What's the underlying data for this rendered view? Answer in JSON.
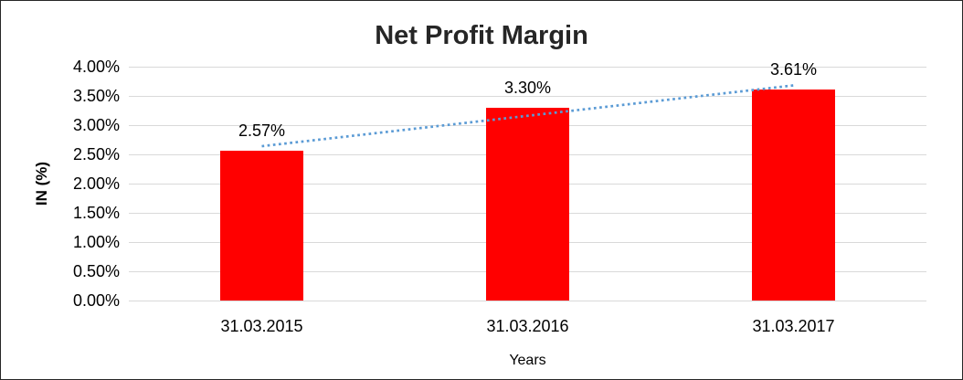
{
  "chart_data": {
    "type": "bar",
    "title": "Net Profit Margin",
    "xlabel": "Years",
    "ylabel": "IN (%)",
    "categories": [
      "31.03.2015",
      "31.03.2016",
      "31.03.2017"
    ],
    "values": [
      2.57,
      3.3,
      3.61
    ],
    "data_labels": [
      "2.57%",
      "3.30%",
      "3.61%"
    ],
    "ylim": [
      0,
      4
    ],
    "ytick_step": 0.5,
    "ytick_labels": [
      "0.00%",
      "0.50%",
      "1.00%",
      "1.50%",
      "2.00%",
      "2.50%",
      "3.00%",
      "3.50%",
      "4.00%"
    ],
    "grid": true,
    "legend": false,
    "series_name": "Net Profit Margin",
    "trendline": {
      "type": "linear",
      "style": "dotted"
    },
    "colors": {
      "bar": "#FF0000",
      "trendline": "#5B9BD5",
      "gridline": "#D9D9D9",
      "title": "#262626",
      "text": "#000000",
      "frame_border": "#262626",
      "background": "#FFFFFF"
    }
  }
}
